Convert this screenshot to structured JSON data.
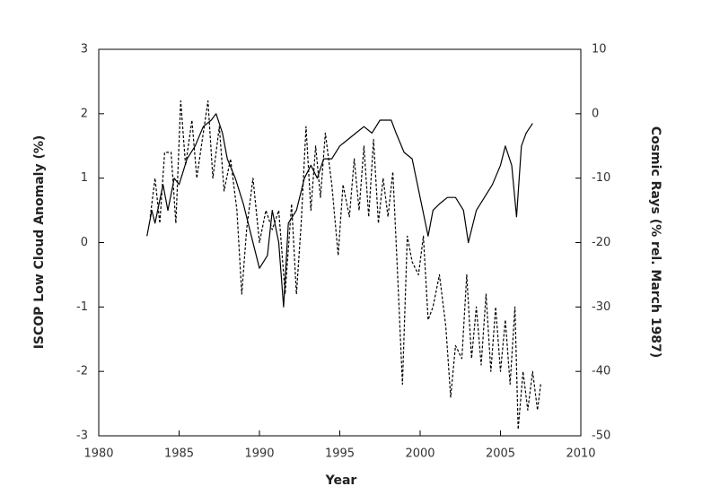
{
  "chart_data": {
    "type": "line",
    "xlabel": "Year",
    "ylabel": "ISCOP Low Cloud Anomaly (%)",
    "y2label": "Cosmic Rays (% rel. March 1987)",
    "xlim": [
      1980,
      2010
    ],
    "xticks": [
      1980,
      1985,
      1990,
      1995,
      2000,
      2005,
      2010
    ],
    "ylim": [
      -3,
      3
    ],
    "yticks": [
      -3,
      -2,
      -1,
      0,
      1,
      2,
      3
    ],
    "y2lim": [
      -50,
      10
    ],
    "y2ticks": [
      -50,
      -40,
      -30,
      -20,
      -10,
      0,
      10
    ],
    "series": [
      {
        "axis": "y2",
        "color": "#000000",
        "dash": false,
        "x": [
          1983.0,
          1983.3,
          1983.5,
          1984.0,
          1984.3,
          1984.7,
          1985.0,
          1985.5,
          1986.0,
          1986.5,
          1987.0,
          1987.3,
          1987.7,
          1988.0,
          1988.5,
          1989.0,
          1989.5,
          1990.0,
          1990.5,
          1990.8,
          1991.2,
          1991.5,
          1991.8,
          1992.3,
          1992.8,
          1993.2,
          1993.6,
          1994.0,
          1994.5,
          1995.0,
          1995.5,
          1996.0,
          1996.5,
          1997.0,
          1997.5,
          1998.2,
          1998.5,
          1999.0,
          1999.5,
          2000.0,
          2000.5,
          2000.8,
          2001.2,
          2001.7,
          2002.2,
          2002.7,
          2003.0,
          2003.5,
          2004.0,
          2004.5,
          2005.0,
          2005.3,
          2005.7,
          2006.0,
          2006.3,
          2006.6,
          2007.0
        ],
        "values": [
          -19,
          -15,
          -17,
          -11,
          -15,
          -10,
          -11,
          -7,
          -5,
          -2,
          -1,
          0,
          -3,
          -7,
          -10,
          -14,
          -19,
          -24,
          -22,
          -15,
          -20,
          -30,
          -17,
          -15,
          -10,
          -8,
          -10,
          -7,
          -7,
          -5,
          -4,
          -3,
          -2,
          -3,
          -1,
          -1,
          -3,
          -6,
          -7,
          -13,
          -19,
          -15,
          -14,
          -13,
          -13,
          -15,
          -20,
          -15,
          -13,
          -11,
          -8,
          -5,
          -8,
          -16,
          -5,
          -3,
          -1.5
        ]
      },
      {
        "color": "#000000",
        "dash": true,
        "x": [
          1983.2,
          1983.5,
          1983.8,
          1984.1,
          1984.5,
          1984.8,
          1985.1,
          1985.4,
          1985.8,
          1986.1,
          1986.5,
          1986.8,
          1987.1,
          1987.5,
          1987.8,
          1988.2,
          1988.6,
          1988.9,
          1989.2,
          1989.6,
          1990.0,
          1990.4,
          1990.8,
          1991.2,
          1991.6,
          1992.0,
          1992.3,
          1992.6,
          1992.9,
          1993.2,
          1993.5,
          1993.8,
          1994.1,
          1994.5,
          1994.9,
          1995.2,
          1995.6,
          1995.9,
          1996.2,
          1996.5,
          1996.8,
          1997.1,
          1997.4,
          1997.7,
          1998.0,
          1998.3,
          1998.6,
          1998.9,
          1999.2,
          1999.5,
          1999.9,
          2000.2,
          2000.5,
          2000.8,
          2001.2,
          2001.6,
          2001.9,
          2002.2,
          2002.6,
          2002.9,
          2003.2,
          2003.5,
          2003.8,
          2004.1,
          2004.4,
          2004.7,
          2005.0,
          2005.3,
          2005.6,
          2005.9,
          2006.1,
          2006.4,
          2006.7,
          2007.0,
          2007.3,
          2007.5
        ],
        "values": [
          0.4,
          1.0,
          0.3,
          1.4,
          1.4,
          0.3,
          2.2,
          1.2,
          1.9,
          1.0,
          1.7,
          2.2,
          1.0,
          1.8,
          0.8,
          1.3,
          0.5,
          -0.8,
          0.2,
          1.0,
          0.0,
          0.5,
          0.2,
          0.5,
          -0.8,
          0.6,
          -0.8,
          0.3,
          1.8,
          0.5,
          1.5,
          0.7,
          1.7,
          0.9,
          -0.2,
          0.9,
          0.4,
          1.3,
          0.5,
          1.5,
          0.4,
          1.6,
          0.3,
          1.0,
          0.4,
          1.1,
          -0.5,
          -2.2,
          0.1,
          -0.3,
          -0.5,
          0.1,
          -1.2,
          -1.0,
          -0.5,
          -1.3,
          -2.4,
          -1.6,
          -1.8,
          -0.5,
          -1.8,
          -1.0,
          -1.9,
          -0.8,
          -2.0,
          -1.0,
          -2.0,
          -1.2,
          -2.2,
          -1.0,
          -2.9,
          -2.0,
          -2.6,
          -2.0,
          -2.6,
          -2.2
        ]
      }
    ]
  }
}
